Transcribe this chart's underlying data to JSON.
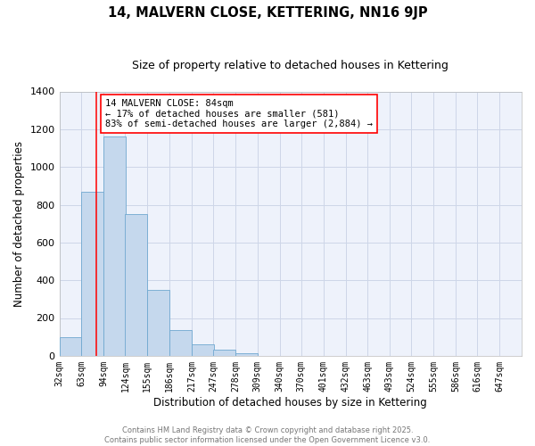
{
  "title": "14, MALVERN CLOSE, KETTERING, NN16 9JP",
  "subtitle": "Size of property relative to detached houses in Kettering",
  "xlabel": "Distribution of detached houses by size in Kettering",
  "ylabel": "Number of detached properties",
  "bar_left_edges": [
    32,
    63,
    94,
    124,
    155,
    186,
    217,
    247,
    278,
    309,
    340,
    370,
    401,
    432,
    463,
    493,
    524,
    555,
    586,
    616
  ],
  "bar_heights": [
    100,
    870,
    1160,
    750,
    350,
    135,
    60,
    30,
    15,
    0,
    0,
    0,
    0,
    0,
    0,
    0,
    0,
    0,
    0,
    0
  ],
  "bin_width": 31,
  "bar_color": "#c5d8ed",
  "bar_edgecolor": "#6fa8d0",
  "property_line_x": 84,
  "annotation_title": "14 MALVERN CLOSE: 84sqm",
  "annotation_line1": "← 17% of detached houses are smaller (581)",
  "annotation_line2": "83% of semi-detached houses are larger (2,884) →",
  "ylim": [
    0,
    1400
  ],
  "yticks": [
    0,
    200,
    400,
    600,
    800,
    1000,
    1200,
    1400
  ],
  "xtick_labels": [
    "32sqm",
    "63sqm",
    "94sqm",
    "124sqm",
    "155sqm",
    "186sqm",
    "217sqm",
    "247sqm",
    "278sqm",
    "309sqm",
    "340sqm",
    "370sqm",
    "401sqm",
    "432sqm",
    "463sqm",
    "493sqm",
    "524sqm",
    "555sqm",
    "586sqm",
    "616sqm",
    "647sqm"
  ],
  "xtick_positions": [
    32,
    63,
    94,
    124,
    155,
    186,
    217,
    247,
    278,
    309,
    340,
    370,
    401,
    432,
    463,
    493,
    524,
    555,
    586,
    616,
    647
  ],
  "grid_color": "#cdd6e8",
  "bg_color": "#eef2fb",
  "footer_line1": "Contains HM Land Registry data © Crown copyright and database right 2025.",
  "footer_line2": "Contains public sector information licensed under the Open Government Licence v3.0.",
  "title_fontsize": 10.5,
  "subtitle_fontsize": 9,
  "axis_label_fontsize": 8.5,
  "tick_fontsize": 7,
  "annotation_fontsize": 7.5,
  "footer_fontsize": 6
}
